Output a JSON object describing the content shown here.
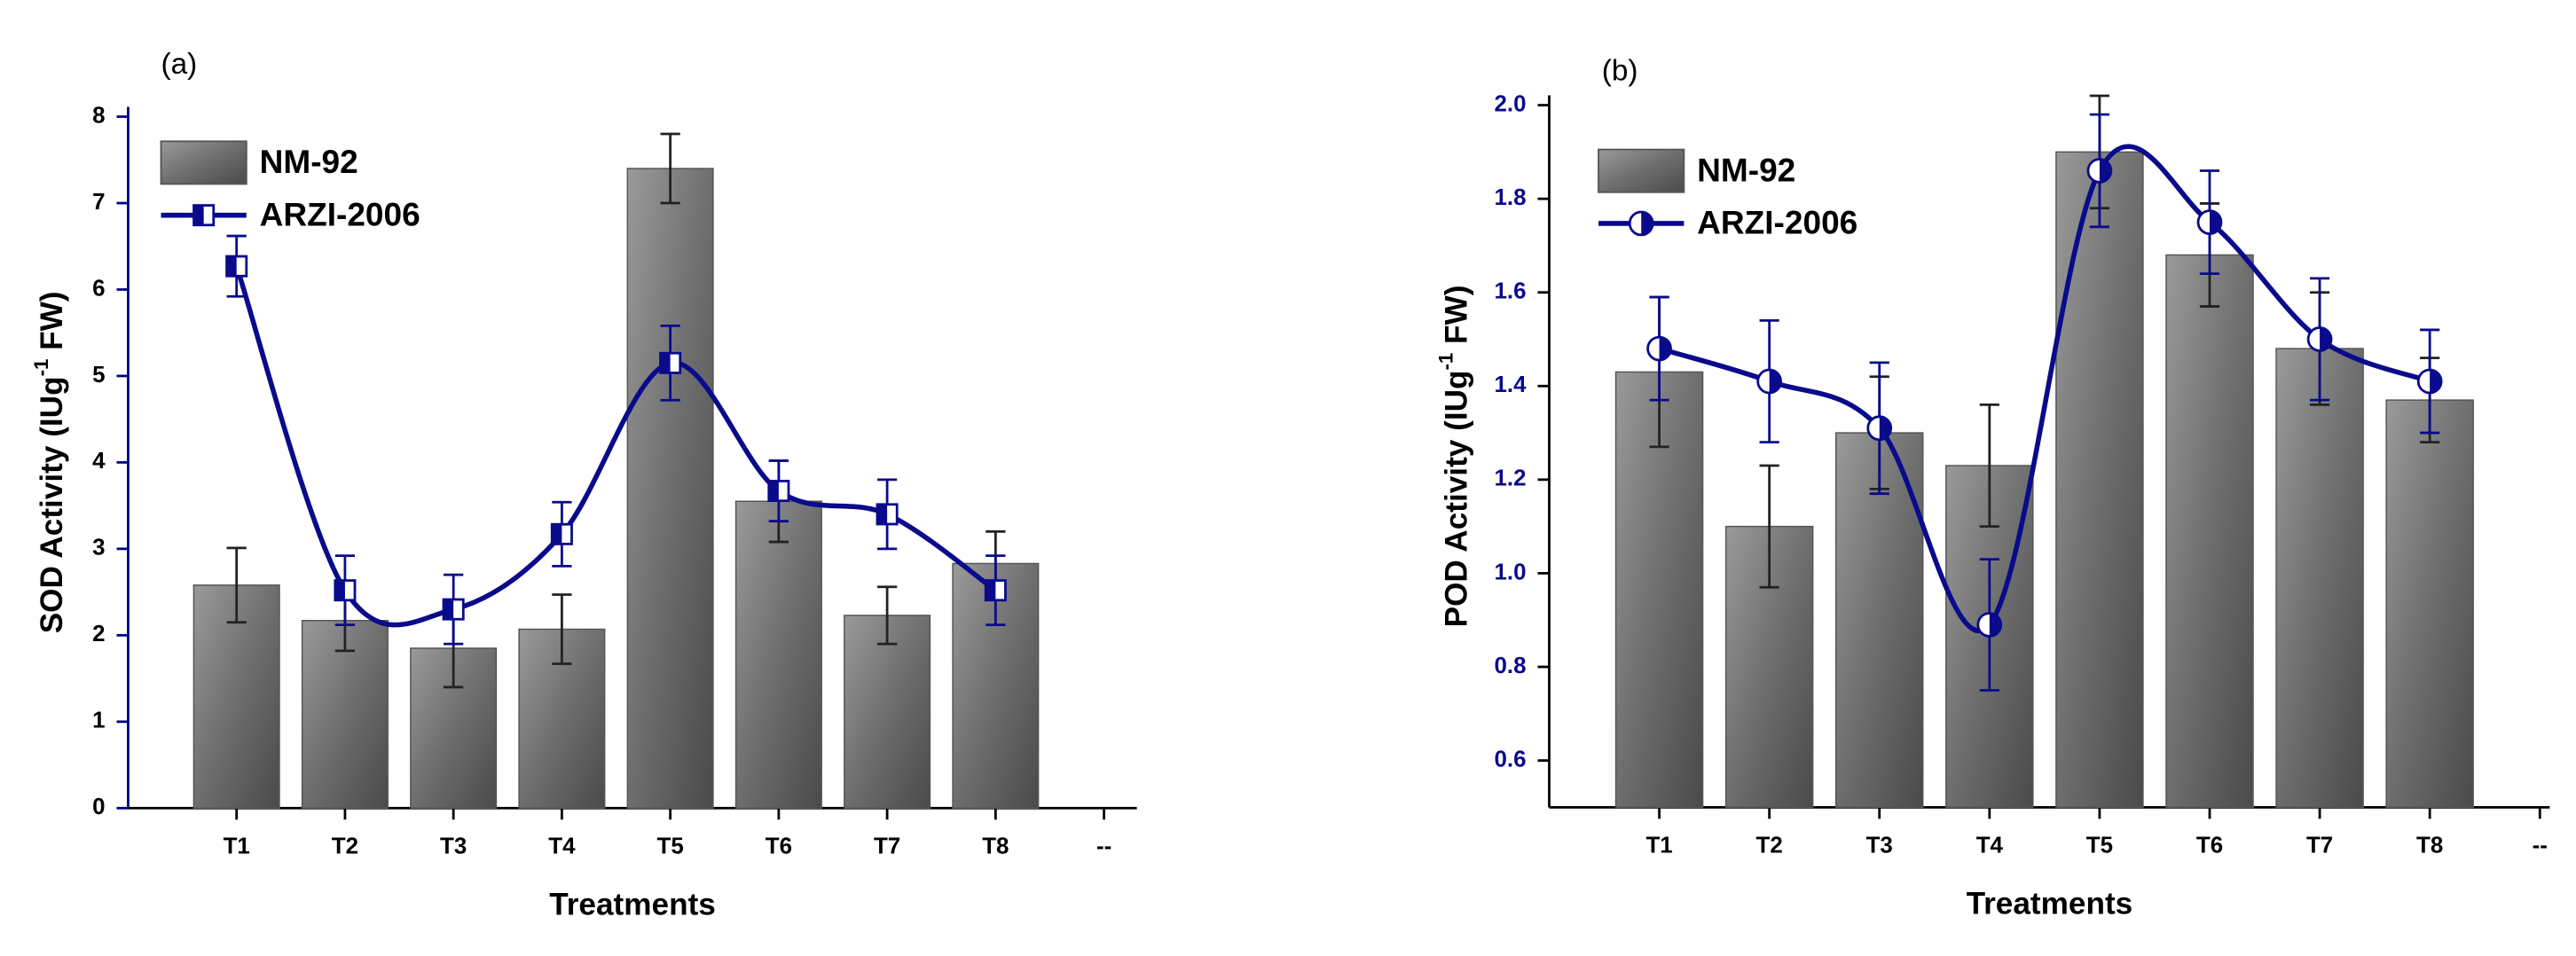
{
  "chart_data": [
    {
      "type": "bar-line",
      "panel_label": "(a)",
      "x_label": "Treatments",
      "y_label_parts": [
        "SOD Activity (IUg",
        "-1",
        " FW)"
      ],
      "categories": [
        "T1",
        "T2",
        "T3",
        "T4",
        "T5",
        "T6",
        "T7",
        "T8",
        "--"
      ],
      "ylim": [
        0,
        8
      ],
      "yticks": [
        0,
        1,
        2,
        3,
        4,
        5,
        6,
        7,
        8
      ],
      "tick_label_color": "#000000",
      "axis_color": "#000080",
      "marker": "square",
      "series": [
        {
          "name": "NM-92",
          "kind": "bar",
          "color": "#777777",
          "values": [
            2.58,
            2.17,
            1.85,
            2.07,
            7.4,
            3.55,
            2.23,
            2.83,
            null
          ],
          "errors": [
            0.43,
            0.35,
            0.45,
            0.4,
            0.4,
            0.47,
            0.33,
            0.37,
            null
          ]
        },
        {
          "name": "ARZI-2006",
          "kind": "line",
          "color": "#0a0a8c",
          "values": [
            6.27,
            2.52,
            2.3,
            3.17,
            5.15,
            3.67,
            3.4,
            2.52,
            null
          ],
          "errors": [
            0.35,
            0.4,
            0.4,
            0.37,
            0.43,
            0.35,
            0.4,
            0.4,
            null
          ]
        }
      ]
    },
    {
      "type": "bar-line",
      "panel_label": "(b)",
      "x_label": "Treatments",
      "y_label_parts": [
        "POD Activity (IUg",
        "-1",
        " FW)"
      ],
      "categories": [
        "T1",
        "T2",
        "T3",
        "T4",
        "T5",
        "T6",
        "T7",
        "T8",
        "--"
      ],
      "ylim": [
        0.5,
        2.0
      ],
      "yticks": [
        0.6,
        0.8,
        {
          "value": 1.0,
          "label": "1.0"
        },
        1.2,
        1.4,
        1.6,
        1.8,
        {
          "value": 2.0,
          "label": "2.0"
        }
      ],
      "tick_label_color": "#0a0a8c",
      "axis_color": "#000000",
      "marker": "circle",
      "series": [
        {
          "name": "NM-92",
          "kind": "bar",
          "color": "#777777",
          "values": [
            1.43,
            1.1,
            1.3,
            1.23,
            1.9,
            1.68,
            1.48,
            1.37,
            null
          ],
          "errors": [
            0.16,
            0.13,
            0.12,
            0.13,
            0.12,
            0.11,
            0.12,
            0.09,
            null
          ]
        },
        {
          "name": "ARZI-2006",
          "kind": "line",
          "color": "#0a0a8c",
          "values": [
            1.48,
            1.41,
            1.31,
            0.89,
            1.86,
            1.75,
            1.5,
            1.41,
            null
          ],
          "errors": [
            0.11,
            0.13,
            0.14,
            0.14,
            0.12,
            0.11,
            0.13,
            0.11,
            null
          ]
        }
      ]
    }
  ]
}
